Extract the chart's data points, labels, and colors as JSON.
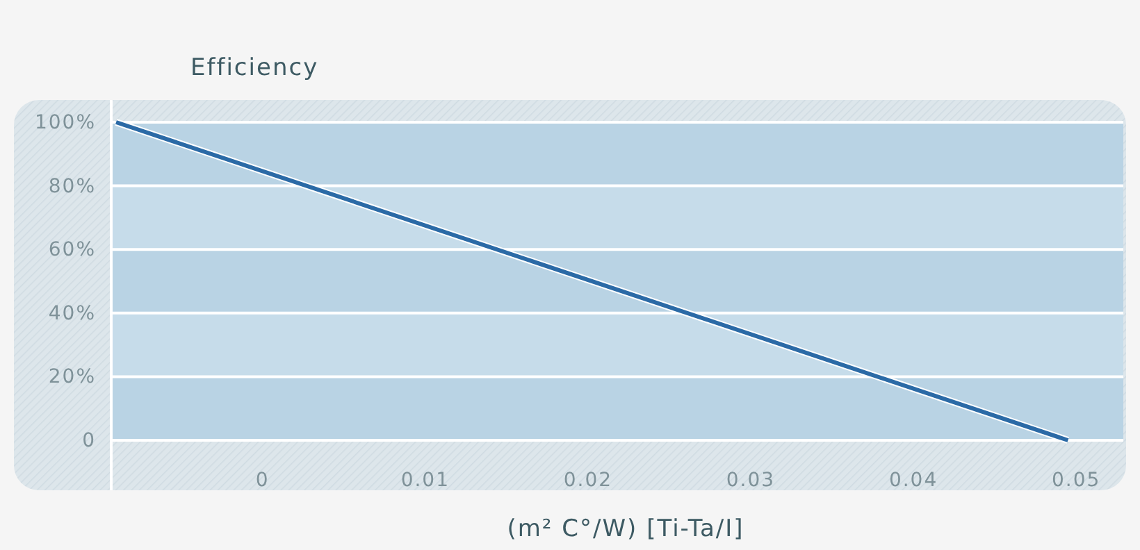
{
  "chart_data": {
    "type": "line",
    "title": "Efficiency",
    "xlabel": "(m² C°/W) [Ti-Ta/I]",
    "x": [
      -0.009,
      0.0495
    ],
    "series": [
      {
        "color": "#2b6aa6",
        "values": [
          100,
          0
        ]
      }
    ],
    "xlim": [
      -0.0093,
      0.0529
    ],
    "xticks": [
      0,
      0.01,
      0.02,
      0.03,
      0.04,
      0.05
    ],
    "ylim": [
      0,
      100
    ],
    "yticks": [
      {
        "value": 0,
        "label": "0"
      },
      {
        "value": 20,
        "label": "20%"
      },
      {
        "value": 40,
        "label": "40%"
      },
      {
        "value": 60,
        "label": "60%"
      },
      {
        "value": 80,
        "label": "80%"
      },
      {
        "value": 100,
        "label": "100%"
      }
    ],
    "bands": [
      {
        "axis": "y",
        "from": 0,
        "to": 20,
        "color": "#b9d3e4"
      },
      {
        "axis": "y",
        "from": 20,
        "to": 40,
        "color": "#c6dcea"
      },
      {
        "axis": "y",
        "from": 40,
        "to": 60,
        "color": "#b9d3e4"
      },
      {
        "axis": "y",
        "from": 60,
        "to": 80,
        "color": "#c6dcea"
      },
      {
        "axis": "y",
        "from": 80,
        "to": 100,
        "color": "#b9d3e4"
      }
    ],
    "grid": "y",
    "marker": "none",
    "line_style": "solid"
  }
}
